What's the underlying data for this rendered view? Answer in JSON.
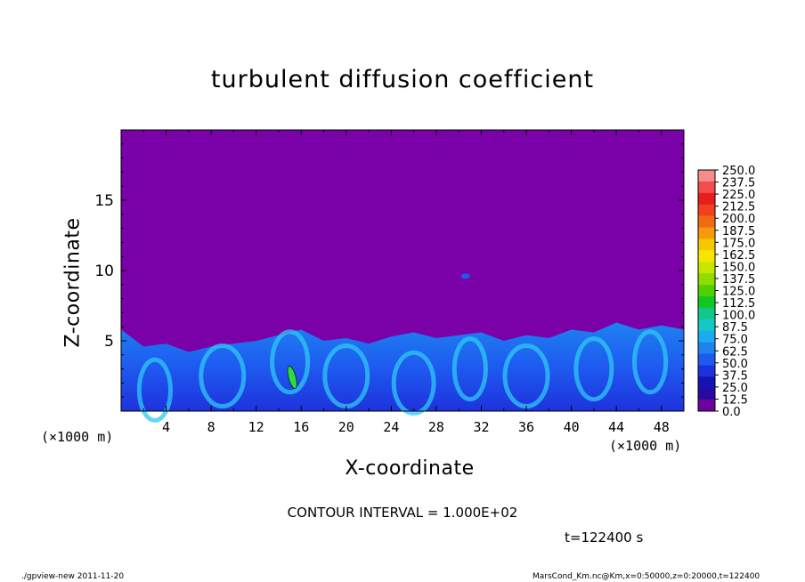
{
  "chart_data": {
    "type": "heatmap",
    "title": "turbulent diffusion coefficient",
    "xlabel": "X-coordinate",
    "ylabel": "Z-coordinate",
    "x_unit": "(×1000 m)",
    "x_unit_right": "(×1000 m)",
    "xlim": [
      0,
      50
    ],
    "ylim": [
      0,
      20
    ],
    "x_ticks": [
      "4",
      "8",
      "12",
      "16",
      "20",
      "24",
      "28",
      "32",
      "36",
      "40",
      "44",
      "48"
    ],
    "y_ticks": [
      "5",
      "10",
      "15"
    ],
    "colorbar": {
      "labels": [
        "250.0",
        "237.5",
        "225.0",
        "212.5",
        "200.0",
        "187.5",
        "175.0",
        "162.5",
        "150.0",
        "137.5",
        "125.0",
        "112.5",
        "100.0",
        "87.5",
        "75.0",
        "62.5",
        "50.0",
        "37.5",
        "25.0",
        "12.5",
        "0.0"
      ],
      "colors": [
        "#f78c8c",
        "#f24d4d",
        "#e61e1e",
        "#f0401e",
        "#f26a14",
        "#f59a0a",
        "#f7c800",
        "#f5e600",
        "#c8e600",
        "#8fdc00",
        "#50d000",
        "#10c820",
        "#10c88c",
        "#14c8c8",
        "#1eaaf0",
        "#1e82f0",
        "#1e5af0",
        "#1e32dc",
        "#1414b4",
        "#280a9e",
        "#6e00a0"
      ]
    },
    "contour_interval": "CONTOUR INTERVAL = 1.000E+02",
    "time": "t=122400 s",
    "background_value_color": "#7a00a8"
  },
  "footer": {
    "left": "./gpview-new   2011-11-20",
    "right": "MarsCond_Km.nc@Km,x=0:50000,z=0:20000,t=122400"
  }
}
